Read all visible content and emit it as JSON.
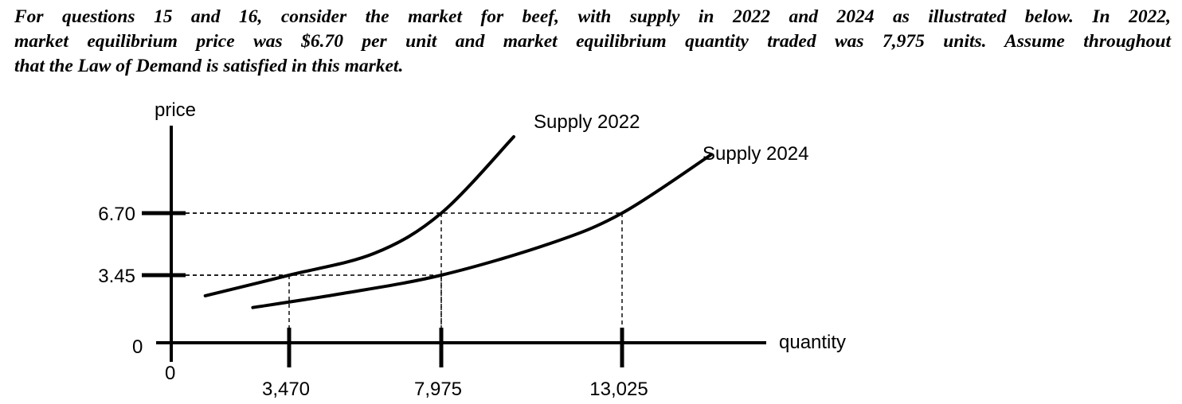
{
  "intro": {
    "line1": "For questions 15 and 16, consider the market for beef, with supply in 2022 and 2024 as illustrated below.  In 2022,",
    "line2": "market equilibrium price was $6.70 per unit and market equilibrium quantity traded was 7,975 units.  Assume throughout",
    "line3": "that the Law of Demand is satisfied in this market."
  },
  "chart_data": {
    "type": "line",
    "xlabel": "quantity",
    "ylabel": "price",
    "x_origin_label": "0",
    "y_origin_label": "0",
    "x_ticks": [
      {
        "value": 3470,
        "label": "3,470"
      },
      {
        "value": 7975,
        "label": "7,975"
      },
      {
        "value": 13025,
        "label": "13,025"
      }
    ],
    "y_ticks": [
      {
        "value": 3.45,
        "label": "3.45"
      },
      {
        "value": 6.7,
        "label": "6.70"
      }
    ],
    "series": [
      {
        "name": "Supply 2022",
        "points": [
          [
            1000,
            2.4
          ],
          [
            3470,
            3.45
          ],
          [
            6000,
            4.6
          ],
          [
            7975,
            6.7
          ],
          [
            10000,
            10.5
          ]
        ]
      },
      {
        "name": "Supply 2024",
        "points": [
          [
            2400,
            1.8
          ],
          [
            5000,
            2.5
          ],
          [
            7975,
            3.45
          ],
          [
            11000,
            5.1
          ],
          [
            13025,
            6.7
          ],
          [
            15500,
            9.6
          ]
        ]
      }
    ],
    "guides": [
      {
        "x": 3470,
        "y": 3.45
      },
      {
        "x": 7975,
        "y": 6.7
      },
      {
        "x": 7975,
        "y": 3.45
      },
      {
        "x": 13025,
        "y": 6.7
      }
    ],
    "grid": false,
    "legend": "none"
  }
}
